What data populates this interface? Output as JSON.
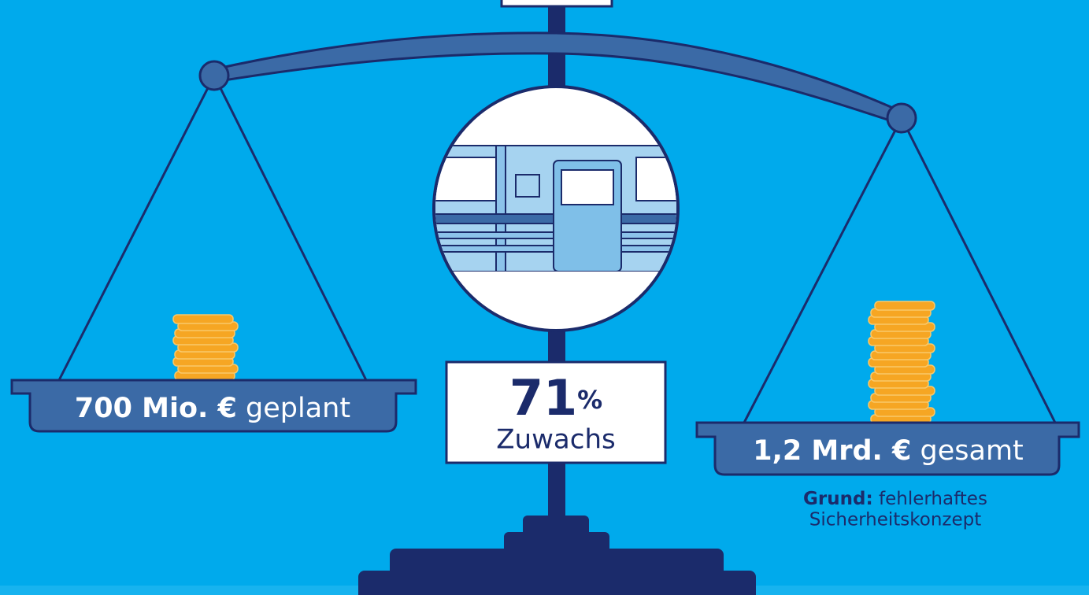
{
  "left_pan": {
    "amount": "700 Mio. €",
    "label": "geplant"
  },
  "center": {
    "value": "71",
    "unit": "%",
    "label": "Zuwachs"
  },
  "right_pan": {
    "amount": "1,2 Mrd. €",
    "label": "gesamt"
  },
  "note": {
    "label": "Grund:",
    "lines": [
      "fehlerhaftes",
      "Sicherheitskonzept"
    ]
  }
}
